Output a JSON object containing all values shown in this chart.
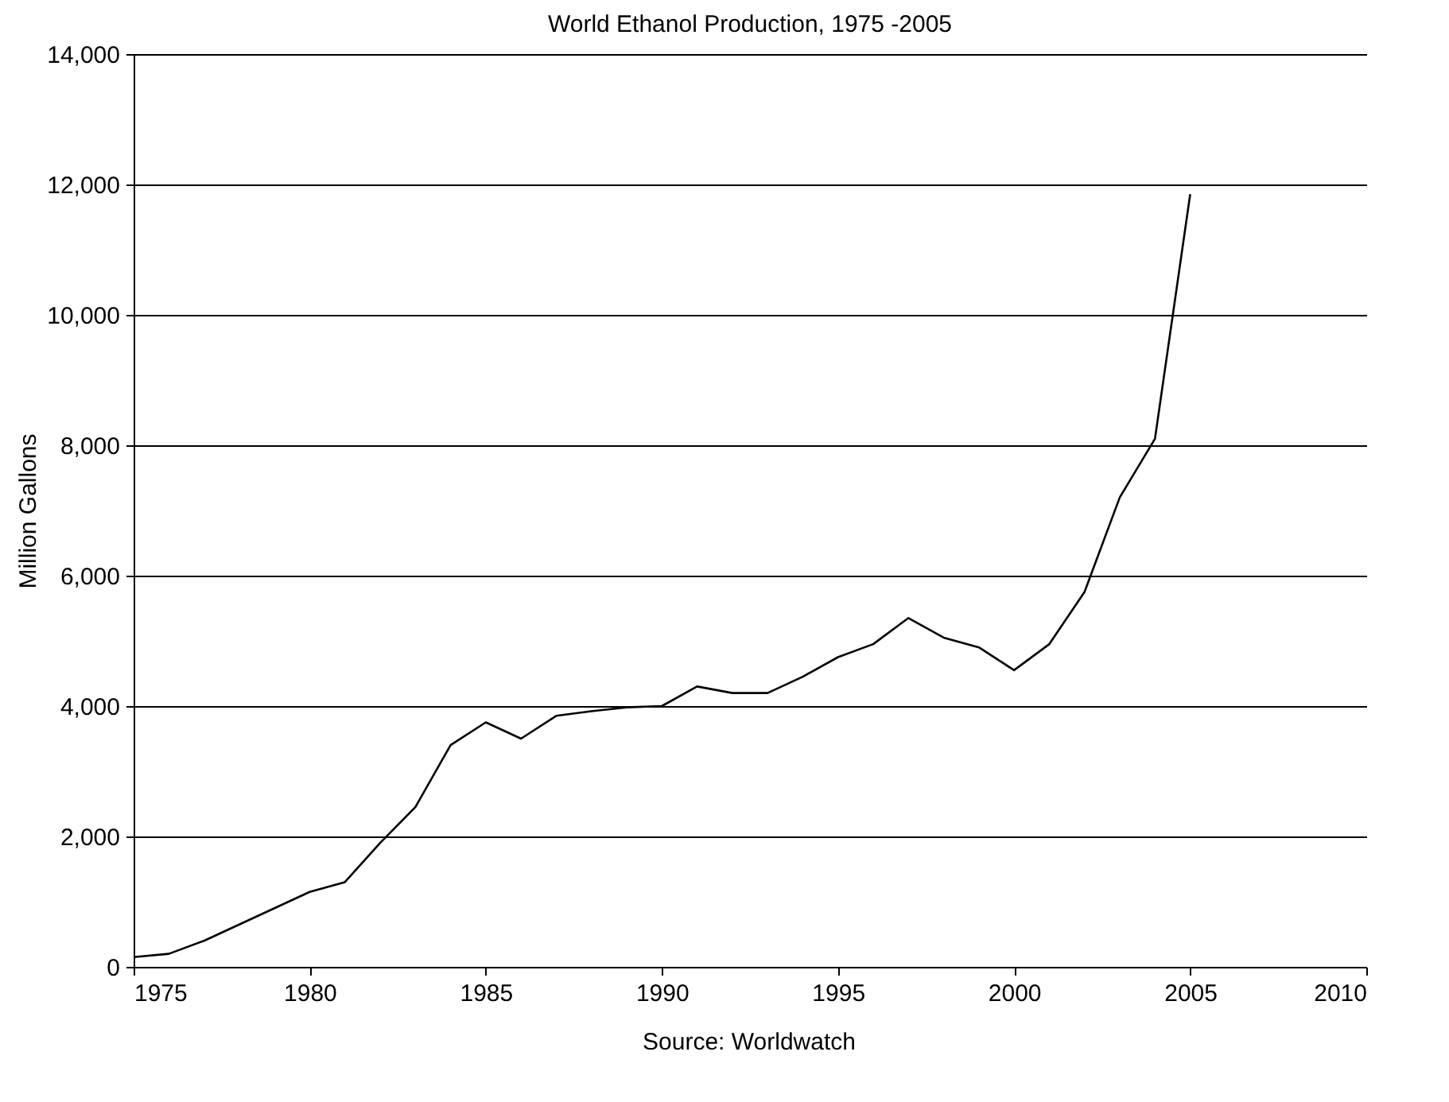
{
  "chart_data": {
    "type": "line",
    "title": "World Ethanol Production, 1975 -2005",
    "ylabel": "Million Gallons",
    "annotations": [
      "Source: Worldwatch"
    ],
    "x": [
      1975,
      1976,
      1977,
      1978,
      1979,
      1980,
      1981,
      1982,
      1983,
      1984,
      1985,
      1986,
      1987,
      1988,
      1989,
      1990,
      1991,
      1992,
      1993,
      1994,
      1995,
      1996,
      1997,
      1998,
      1999,
      2000,
      2001,
      2002,
      2003,
      2004,
      2005
    ],
    "series": [
      {
        "color": "#000000",
        "values": [
          150,
          200,
          400,
          650,
          900,
          1150,
          1300,
          1900,
          2450,
          3400,
          3750,
          3500,
          3850,
          3920,
          3980,
          4000,
          4300,
          4200,
          4200,
          4450,
          4750,
          4950,
          5350,
          5050,
          4900,
          4550,
          4950,
          5750,
          7200,
          8100,
          11850
        ]
      }
    ],
    "xlim": [
      1975,
      2010
    ],
    "xticks": [
      1975,
      1980,
      1985,
      1990,
      1995,
      2000,
      2005,
      2010
    ],
    "ylim": [
      0,
      14000
    ],
    "yticks": [
      {
        "value": 0,
        "label": "0"
      },
      {
        "value": 2000,
        "label": "2,000"
      },
      {
        "value": 4000,
        "label": "4,000"
      },
      {
        "value": 6000,
        "label": "6,000"
      },
      {
        "value": 8000,
        "label": "8,000"
      },
      {
        "value": 10000,
        "label": "10,000"
      },
      {
        "value": 12000,
        "label": "12,000"
      },
      {
        "value": 14000,
        "label": "14,000"
      }
    ],
    "grid": "y",
    "marker": "none",
    "line_style": "solid"
  }
}
